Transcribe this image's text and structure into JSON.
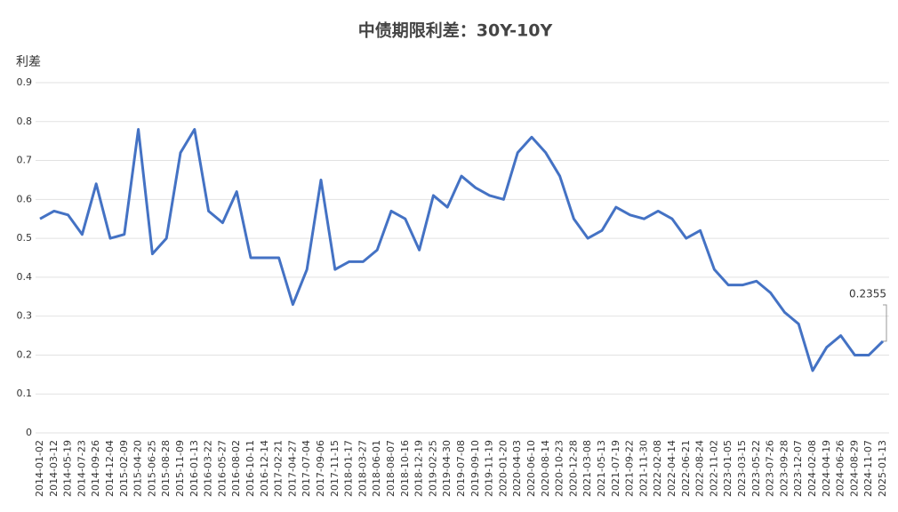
{
  "chart_data": {
    "type": "line",
    "title": "中债期限利差：30Y-10Y",
    "y_label": "利差",
    "annotation": "0.2355",
    "categories": [
      "2014-01-02",
      "2014-03-12",
      "2014-05-19",
      "2014-07-23",
      "2014-09-26",
      "2014-12-04",
      "2015-02-09",
      "2015-04-20",
      "2015-06-25",
      "2015-08-28",
      "2015-11-09",
      "2016-01-13",
      "2016-03-22",
      "2016-05-27",
      "2016-08-02",
      "2016-10-11",
      "2016-12-14",
      "2017-02-21",
      "2017-04-27",
      "2017-07-04",
      "2017-09-06",
      "2017-11-15",
      "2018-01-17",
      "2018-03-27",
      "2018-06-01",
      "2018-08-07",
      "2018-10-16",
      "2018-12-19",
      "2019-02-25",
      "2019-04-30",
      "2019-07-08",
      "2019-09-10",
      "2019-11-19",
      "2020-01-20",
      "2020-04-03",
      "2020-06-10",
      "2020-08-14",
      "2020-10-23",
      "2020-12-28",
      "2021-03-08",
      "2021-05-13",
      "2021-07-19",
      "2021-09-22",
      "2021-11-30",
      "2022-02-08",
      "2022-04-14",
      "2022-06-21",
      "2022-08-24",
      "2022-11-02",
      "2023-01-05",
      "2023-03-15",
      "2023-05-22",
      "2023-07-26",
      "2023-09-28",
      "2023-12-07",
      "2024-02-08",
      "2024-04-19",
      "2024-06-26",
      "2024-08-29",
      "2024-11-07",
      "2025-01-13"
    ],
    "series": [
      {
        "name": "利差",
        "color": "#4472c4",
        "values": [
          0.55,
          0.57,
          0.56,
          0.51,
          0.64,
          0.5,
          0.51,
          0.78,
          0.46,
          0.5,
          0.72,
          0.78,
          0.57,
          0.54,
          0.62,
          0.45,
          0.45,
          0.45,
          0.33,
          0.42,
          0.65,
          0.42,
          0.44,
          0.44,
          0.47,
          0.57,
          0.55,
          0.47,
          0.61,
          0.58,
          0.66,
          0.63,
          0.61,
          0.6,
          0.72,
          0.76,
          0.72,
          0.66,
          0.55,
          0.5,
          0.52,
          0.58,
          0.56,
          0.55,
          0.57,
          0.55,
          0.5,
          0.52,
          0.42,
          0.38,
          0.38,
          0.39,
          0.36,
          0.31,
          0.28,
          0.16,
          0.22,
          0.25,
          0.2,
          0.2,
          0.2355
        ]
      }
    ],
    "ylim": [
      0,
      0.9
    ],
    "yticks": [
      0,
      0.1,
      0.2,
      0.3,
      0.4,
      0.5,
      0.6,
      0.7,
      0.8,
      0.9
    ],
    "grid": true
  }
}
